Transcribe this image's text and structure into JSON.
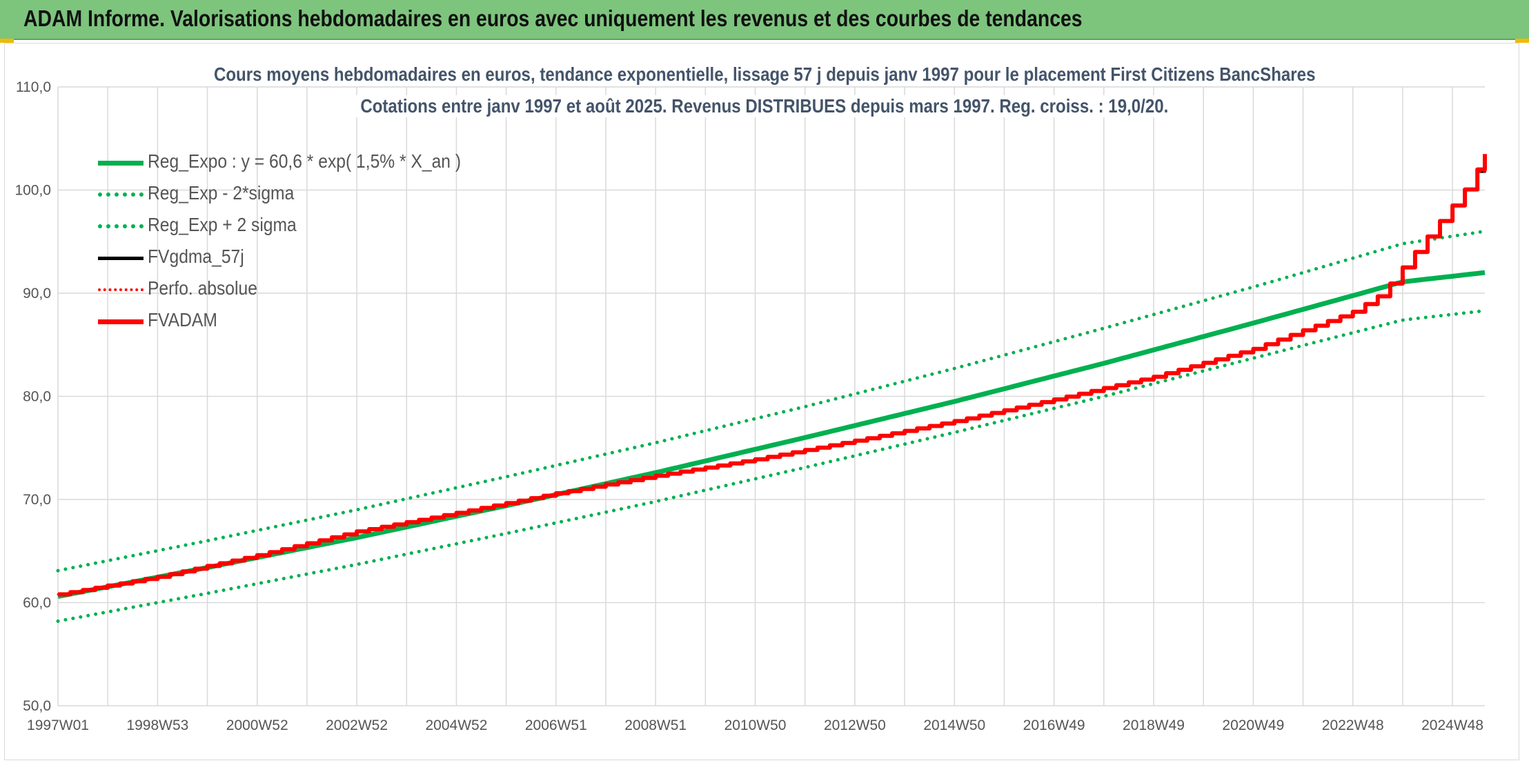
{
  "banner": {
    "title": "ADAM Informe. Valorisations hebdomadaires en euros avec uniquement les revenus et des courbes de tendances"
  },
  "chart_data": {
    "type": "line",
    "title": "Cours moyens hebdomadaires en euros, tendance exponentielle, lissage 57 j depuis janv 1997 pour le placement First Citizens BancShares",
    "subtitle": "Cotations entre janv 1997 et août 2025. Revenus DISTRIBUES depuis mars 1997. Reg. croiss. : 19,0/20.",
    "xlabel": "",
    "ylabel": "",
    "ylim": [
      50,
      110
    ],
    "yticks": [
      "50,0",
      "60,0",
      "70,0",
      "80,0",
      "90,0",
      "100,0",
      "110,0"
    ],
    "xrange_years": [
      1997.0,
      2025.65
    ],
    "xticks": [
      {
        "label": "1997W01",
        "x": 1997.0
      },
      {
        "label": "1998W53",
        "x": 1999.0
      },
      {
        "label": "2000W52",
        "x": 2001.0
      },
      {
        "label": "2002W52",
        "x": 2003.0
      },
      {
        "label": "2004W52",
        "x": 2005.0
      },
      {
        "label": "2006W51",
        "x": 2007.0
      },
      {
        "label": "2008W51",
        "x": 2009.0
      },
      {
        "label": "2010W50",
        "x": 2011.0
      },
      {
        "label": "2012W50",
        "x": 2013.0
      },
      {
        "label": "2014W50",
        "x": 2015.0
      },
      {
        "label": "2016W49",
        "x": 2017.0
      },
      {
        "label": "2018W49",
        "x": 2019.0
      },
      {
        "label": "2020W49",
        "x": 2021.0
      },
      {
        "label": "2022W48",
        "x": 2023.0
      },
      {
        "label": "2024W48",
        "x": 2025.0
      }
    ],
    "grid": true,
    "legend_position": "top-left",
    "series": [
      {
        "name": "Reg_Expo : y = 60,6 * exp( 1,5% *  X_an )",
        "color": "#00b050",
        "style": "solid",
        "width": 7,
        "x": [
          1997,
          2000,
          2003,
          2006,
          2009,
          2012,
          2015,
          2018,
          2021,
          2024,
          2025.65
        ],
        "y": [
          60.6,
          63.4,
          66.3,
          69.4,
          72.6,
          76.0,
          79.5,
          83.2,
          87.1,
          91.1,
          92.0
        ]
      },
      {
        "name": "Reg_Exp - 2*sigma",
        "color": "#00b050",
        "style": "dotted",
        "width": 5,
        "x": [
          1997,
          2000,
          2003,
          2006,
          2009,
          2012,
          2015,
          2018,
          2021,
          2024,
          2025.65
        ],
        "y": [
          58.2,
          60.9,
          63.7,
          66.7,
          69.8,
          73.1,
          76.5,
          80.0,
          83.7,
          87.4,
          88.3
        ]
      },
      {
        "name": "Reg_Exp + 2 sigma",
        "color": "#00b050",
        "style": "dotted",
        "width": 5,
        "x": [
          1997,
          2000,
          2003,
          2006,
          2009,
          2012,
          2015,
          2018,
          2021,
          2024,
          2025.65
        ],
        "y": [
          63.1,
          66.0,
          69.0,
          72.2,
          75.5,
          79.0,
          82.7,
          86.6,
          90.6,
          94.8,
          96.0
        ]
      },
      {
        "name": "FVgdma_57j",
        "color": "#000000",
        "style": "solid",
        "width": 4,
        "x": [
          1997,
          1999,
          2001,
          2003,
          2005,
          2007,
          2009,
          2011,
          2013,
          2015,
          2017,
          2019,
          2021,
          2023,
          2023.6,
          2024,
          2024.5,
          2025,
          2025.4,
          2025.65
        ],
        "y": [
          60.8,
          62.5,
          64.6,
          66.9,
          68.7,
          70.6,
          72.3,
          73.9,
          75.7,
          77.6,
          79.7,
          81.9,
          84.6,
          88.2,
          90.0,
          92.5,
          95.5,
          98.5,
          101.0,
          103.0
        ]
      },
      {
        "name": "Perfo. absolue",
        "color": "#ff0000",
        "style": "dotted",
        "width": 3,
        "x": [
          1997,
          1999,
          2001,
          2003,
          2005,
          2007,
          2009,
          2011,
          2013,
          2015,
          2017,
          2019,
          2021,
          2023,
          2023.6,
          2024,
          2024.5,
          2025,
          2025.4,
          2025.65
        ],
        "y": [
          60.8,
          62.5,
          64.6,
          66.9,
          68.7,
          70.6,
          72.3,
          73.9,
          75.7,
          77.6,
          79.7,
          81.9,
          84.6,
          88.2,
          90.0,
          92.5,
          95.5,
          98.5,
          101.0,
          103.0
        ]
      },
      {
        "name": "FVADAM",
        "color": "#ff0000",
        "style": "solid",
        "width": 6,
        "x": [
          1997,
          1999,
          2001,
          2003,
          2005,
          2007,
          2009,
          2011,
          2013,
          2015,
          2017,
          2019,
          2021,
          2023,
          2023.6,
          2024,
          2024.5,
          2025,
          2025.4,
          2025.65
        ],
        "y": [
          60.8,
          62.5,
          64.6,
          66.9,
          68.7,
          70.6,
          72.3,
          73.9,
          75.7,
          77.6,
          79.7,
          81.9,
          84.6,
          88.2,
          90.0,
          92.5,
          95.5,
          98.5,
          101.0,
          103.5
        ]
      }
    ]
  }
}
